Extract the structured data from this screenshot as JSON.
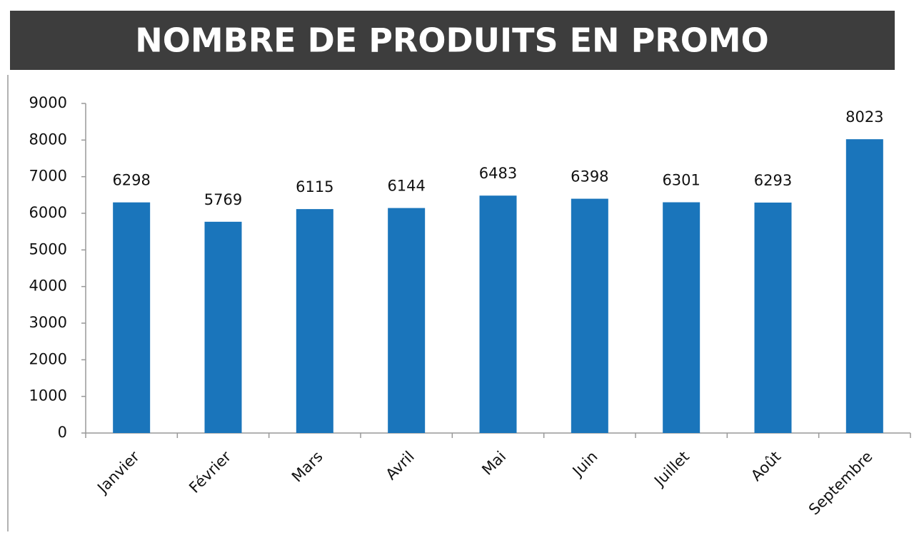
{
  "chart_data": {
    "type": "bar",
    "title": "NOMBRE DE PRODUITS EN PROMO",
    "categories": [
      "Janvier",
      "Février",
      "Mars",
      "Avril",
      "Mai",
      "Juin",
      "Juillet",
      "Août",
      "Septembre"
    ],
    "values": [
      6298,
      5769,
      6115,
      6144,
      6483,
      6398,
      6301,
      6293,
      8023
    ],
    "color": "#1a75bb",
    "ylim": [
      0,
      9000
    ],
    "yticks": [
      0,
      1000,
      2000,
      3000,
      4000,
      5000,
      6000,
      7000,
      8000,
      9000
    ],
    "grid": false
  }
}
